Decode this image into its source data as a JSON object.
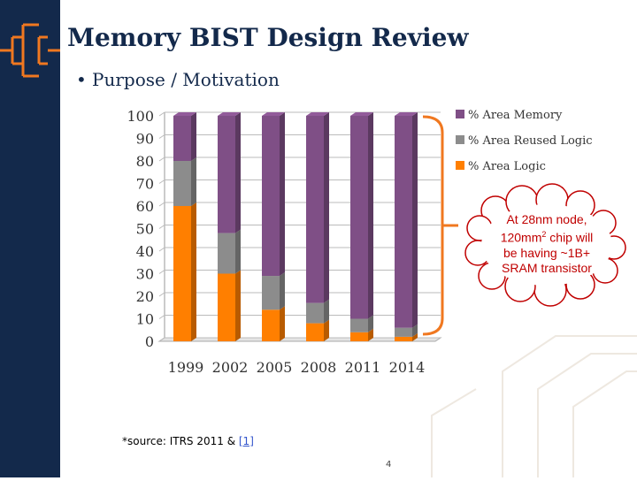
{
  "slide": {
    "title": "Memory BIST Design Review",
    "bullet": "Purpose / Motivation",
    "source_prefix": "*source: ITRS 2011 & ",
    "source_ref": "[1]",
    "page_number": "4",
    "callout": {
      "line1": "At 28nm node,",
      "line2_pre": "120mm",
      "line2_sup": "2",
      "line2_post": " chip will",
      "line3": "be having ~1B+",
      "line4": "SRAM transistor"
    }
  },
  "colors": {
    "brand_dark": "#13294b",
    "memory": "#7f4f86",
    "reused_logic": "#8c8c8c",
    "logic": "#ff7f00",
    "callout_text": "#c00000",
    "bracket": "#f07820"
  },
  "icons": [
    "circuit-bracket-icon"
  ],
  "chart_data": {
    "type": "bar",
    "stacked": true,
    "three_d": true,
    "categories": [
      "1999",
      "2002",
      "2005",
      "2008",
      "2011",
      "2014"
    ],
    "series": [
      {
        "name": "% Area Logic",
        "values": [
          60,
          30,
          14,
          8,
          4,
          2
        ]
      },
      {
        "name": "% Area Reused Logic",
        "values": [
          20,
          18,
          15,
          9,
          6,
          4
        ]
      },
      {
        "name": "% Area Memory",
        "values": [
          20,
          52,
          71,
          83,
          90,
          94
        ]
      }
    ],
    "legend_order": [
      "% Area Memory",
      "% Area Reused Logic",
      "% Area Logic"
    ],
    "legend_position": "top-right",
    "y_ticks": [
      "0",
      "10",
      "20",
      "30",
      "40",
      "50",
      "60",
      "70",
      "80",
      "90",
      "100"
    ],
    "ylim": [
      0,
      100
    ],
    "grid": true
  }
}
